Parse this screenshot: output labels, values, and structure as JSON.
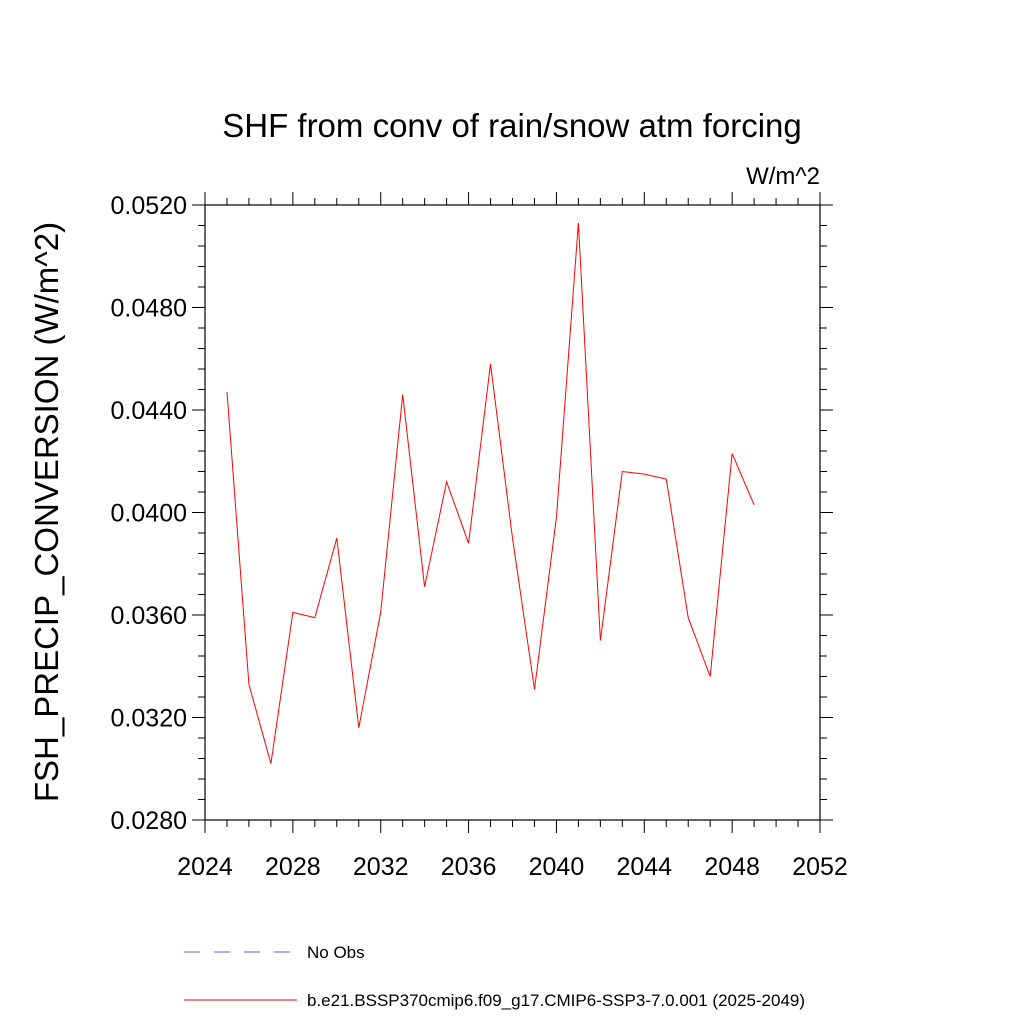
{
  "chart_data": {
    "type": "line",
    "title": "SHF from conv of rain/snow atm forcing",
    "units": "W/m^2",
    "ylabel": "FSH_PRECIP_CONVERSION  (W/m^2)",
    "xlabel": "",
    "xlim": [
      2024,
      2052
    ],
    "ylim": [
      0.028,
      0.052
    ],
    "x_ticks": [
      2024,
      2028,
      2032,
      2036,
      2040,
      2044,
      2048,
      2052
    ],
    "x_tick_labels": [
      "2024",
      "2028",
      "2032",
      "2036",
      "2040",
      "2044",
      "2048",
      "2052"
    ],
    "y_ticks": [
      0.028,
      0.032,
      0.036,
      0.04,
      0.044,
      0.048,
      0.052
    ],
    "y_tick_labels": [
      "0.0280",
      "0.0320",
      "0.0360",
      "0.0400",
      "0.0440",
      "0.0480",
      "0.0520"
    ],
    "grid": false,
    "series": [
      {
        "name": "b.e21.BSSP370cmip6.f09_g17.CMIP6-SSP3-7.0.001 (2025-2049)",
        "color": "#ff0000",
        "x": [
          2025,
          2026,
          2027,
          2028,
          2029,
          2030,
          2031,
          2032,
          2033,
          2034,
          2035,
          2036,
          2037,
          2038,
          2039,
          2040,
          2041,
          2042,
          2043,
          2044,
          2045,
          2046,
          2047,
          2048,
          2049
        ],
        "values": [
          0.0447,
          0.0333,
          0.0302,
          0.0361,
          0.0359,
          0.039,
          0.0316,
          0.0361,
          0.0446,
          0.0371,
          0.0412,
          0.0388,
          0.0458,
          0.039,
          0.0331,
          0.0398,
          0.0513,
          0.035,
          0.0416,
          0.0415,
          0.0413,
          0.0359,
          0.0336,
          0.0423,
          0.0403
        ]
      }
    ],
    "legend": {
      "placement": "bottom",
      "entries": [
        {
          "label": "No Obs",
          "color": "#6a5acd",
          "style": "dashed"
        },
        {
          "label": "b.e21.BSSP370cmip6.f09_g17.CMIP6-SSP3-7.0.001 (2025-2049)",
          "color": "#ff0000",
          "style": "solid"
        }
      ]
    }
  }
}
